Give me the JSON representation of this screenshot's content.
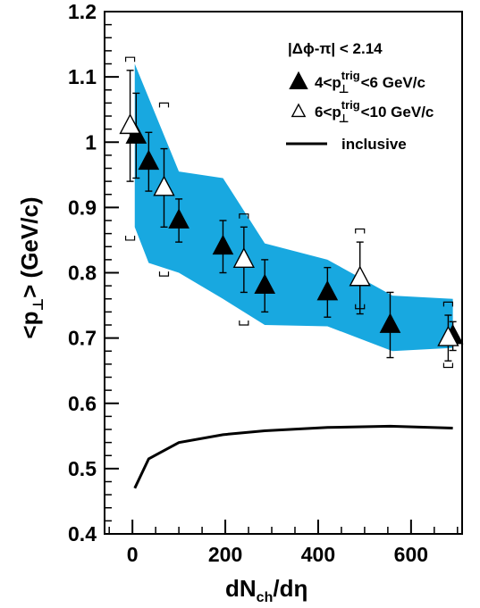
{
  "chart_data": {
    "type": "scatter",
    "xlabel": "dN",
    "xlabel_sub": "ch",
    "xlabel_tail": "/dη",
    "ylabel": "<p",
    "ylabel_sub": "⊥",
    "ylabel_tail": ">   (GeV/c)",
    "xlim": [
      -60,
      710
    ],
    "ylim": [
      0.4,
      1.2
    ],
    "xticks": [
      0,
      200,
      400,
      600
    ],
    "xtick_labels": [
      "0",
      "200",
      "400",
      "600"
    ],
    "yticks": [
      0.4,
      0.5,
      0.6,
      0.7,
      0.8,
      0.9,
      1.0,
      1.1,
      1.2
    ],
    "ytick_labels": [
      "0.4",
      "0.5",
      "0.6",
      "0.7",
      "0.8",
      "0.9",
      "1",
      "1.1",
      "1.2"
    ],
    "annotation": "|Δϕ-π| < 2.14",
    "band": {
      "color": "#18a8e0",
      "upper": [
        [
          5,
          1.12
        ],
        [
          100,
          0.955
        ],
        [
          195,
          0.945
        ],
        [
          285,
          0.845
        ],
        [
          420,
          0.82
        ],
        [
          560,
          0.765
        ],
        [
          690,
          0.76
        ]
      ],
      "lower": [
        [
          690,
          0.685
        ],
        [
          560,
          0.68
        ],
        [
          420,
          0.718
        ],
        [
          285,
          0.72
        ],
        [
          195,
          0.76
        ],
        [
          100,
          0.8
        ],
        [
          35,
          0.815
        ],
        [
          5,
          0.87
        ]
      ]
    },
    "series": [
      {
        "name": "4<p_⊥^trig<6 GeV/c",
        "marker": "filled-triangle",
        "points": [
          {
            "x": 8,
            "y": 1.01,
            "err": 0.065
          },
          {
            "x": 35,
            "y": 0.97,
            "err": 0.045
          },
          {
            "x": 100,
            "y": 0.88,
            "err": 0.033
          },
          {
            "x": 195,
            "y": 0.84,
            "err": 0.04
          },
          {
            "x": 285,
            "y": 0.78,
            "err": 0.04
          },
          {
            "x": 420,
            "y": 0.77,
            "err": 0.038
          },
          {
            "x": 555,
            "y": 0.72,
            "err": 0.05
          },
          {
            "x": 690,
            "y": 0.703,
            "err": 0.022
          }
        ]
      },
      {
        "name": "6<p_⊥^trig<10 GeV/c",
        "marker": "open-triangle",
        "points": [
          {
            "x": -5,
            "y": 1.025,
            "err": 0.085,
            "sys_hi": 1.13,
            "sys_lo": 0.85
          },
          {
            "x": 68,
            "y": 0.93,
            "err": 0.06,
            "sys_hi": 1.06,
            "sys_lo": 0.795
          },
          {
            "x": 240,
            "y": 0.82,
            "err": 0.05,
            "sys_hi": 0.89,
            "sys_lo": 0.72
          },
          {
            "x": 490,
            "y": 0.792,
            "err": 0.055,
            "sys_hi": 0.867,
            "sys_lo": 0.745
          },
          {
            "x": 680,
            "y": 0.7,
            "err": 0.035,
            "sys_hi": 0.755,
            "sys_lo": 0.655
          }
        ]
      },
      {
        "name": "inclusive",
        "marker": "line",
        "points": [
          {
            "x": 5,
            "y": 0.47
          },
          {
            "x": 35,
            "y": 0.515
          },
          {
            "x": 100,
            "y": 0.54
          },
          {
            "x": 195,
            "y": 0.552
          },
          {
            "x": 285,
            "y": 0.558
          },
          {
            "x": 420,
            "y": 0.563
          },
          {
            "x": 555,
            "y": 0.565
          },
          {
            "x": 690,
            "y": 0.562
          }
        ]
      }
    ],
    "legend": [
      {
        "marker": "filled-triangle",
        "pre": "4<p",
        "sub": "⊥",
        "sup": "trig",
        "post": "<6 GeV/c"
      },
      {
        "marker": "open-triangle",
        "pre": "6<p",
        "sub": "⊥",
        "sup": "trig",
        "post": "<10 GeV/c"
      },
      {
        "marker": "line",
        "pre": "inclusive",
        "sub": "",
        "sup": "",
        "post": ""
      }
    ],
    "legend_position": "top-right"
  }
}
